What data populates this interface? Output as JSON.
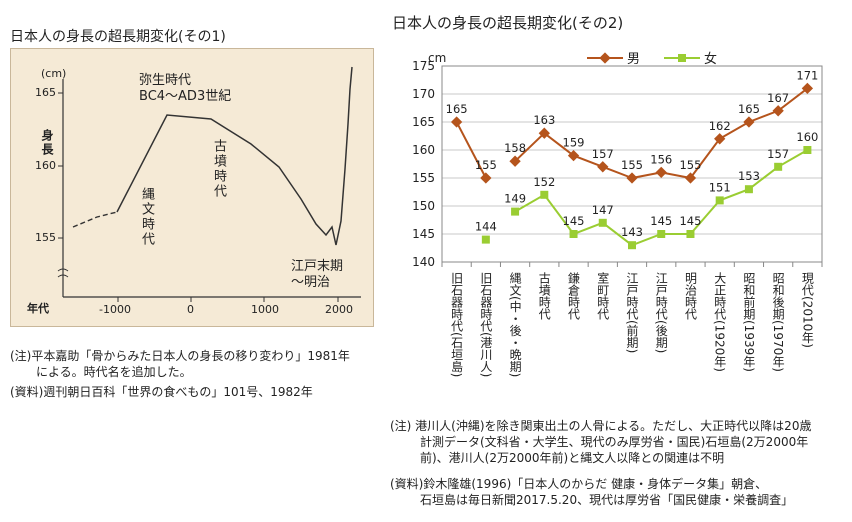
{
  "titles": {
    "left": "日本人の身長の超長期変化(その1)",
    "right": "日本人の身長の超長期変化(その2)"
  },
  "left_chart": {
    "y_unit": "(cm)",
    "y_label": "身長",
    "x_label": "年代",
    "y_ticks": [
      "165",
      "160",
      "155"
    ],
    "x_ticks": [
      "-1000",
      "0",
      "1000",
      "2000"
    ],
    "era_labels": {
      "yayoi": "弥生時代",
      "yayoi_sub": "BC4〜AD3世紀",
      "kofun": "古墳時代",
      "jomon": "縄文時代",
      "edo_1": "江戸末期",
      "edo_2": "〜明治"
    },
    "notes": [
      "(注)平本嘉助「骨からみた日本人の身長の移り変わり」1981年",
      "による。時代名を追加した。",
      "(資料)週刊朝日百科「世界の食べもの」101号、1982年"
    ]
  },
  "chart_data": {
    "type": "line",
    "title": "日本人の身長の超長期変化(その2)",
    "ylabel": "cm",
    "ylim": [
      140,
      175
    ],
    "yticks": [
      140,
      145,
      150,
      155,
      160,
      165,
      170,
      175
    ],
    "categories": [
      "旧石器時代(石垣島)",
      "旧石器時代(港川人)",
      "縄文(中・後・晩期)",
      "古墳時代",
      "鎌倉時代",
      "室町時代",
      "江戸時代(前期)",
      "江戸時代(後期)",
      "明治時代",
      "大正時代(1920年)",
      "昭和前期(1939年)",
      "昭和後期(1970年)",
      "現代(2010年)"
    ],
    "series": [
      {
        "name": "男",
        "color": "#b5541c",
        "values": [
          165,
          155,
          158,
          163,
          159,
          157,
          155,
          156,
          155,
          162,
          165,
          167,
          171
        ],
        "labels": [
          "165",
          "155",
          "158",
          "163",
          "159",
          "157",
          "155",
          "156",
          "155",
          "162",
          "165",
          "167",
          "171"
        ]
      },
      {
        "name": "女",
        "color": "#9acd32",
        "values": [
          null,
          144,
          149,
          152,
          145,
          147,
          143,
          145,
          145,
          151,
          153,
          157,
          160
        ],
        "labels": [
          "",
          "144",
          "149",
          "152",
          "145",
          "147",
          "143",
          "145",
          "145",
          "151",
          "153",
          "157",
          "160"
        ]
      }
    ],
    "legend": "top",
    "grid": true,
    "notes": [
      "(注) 港川人(沖縄)を除き関東出土の人骨による。ただし、大正時代以降は20歳",
      "計測データ(文科省・大学生、現代のみ厚労省・国民)石垣島(2万2000年",
      "前)、港川人(2万2000年前)と縄文人以降との関連は不明",
      "(資料)鈴木隆雄(1996)「日本人のからだ 健康・身体データ集」朝倉、",
      "石垣島は毎日新聞2017.5.20、現代は厚労省「国民健康・栄養調査」"
    ]
  }
}
